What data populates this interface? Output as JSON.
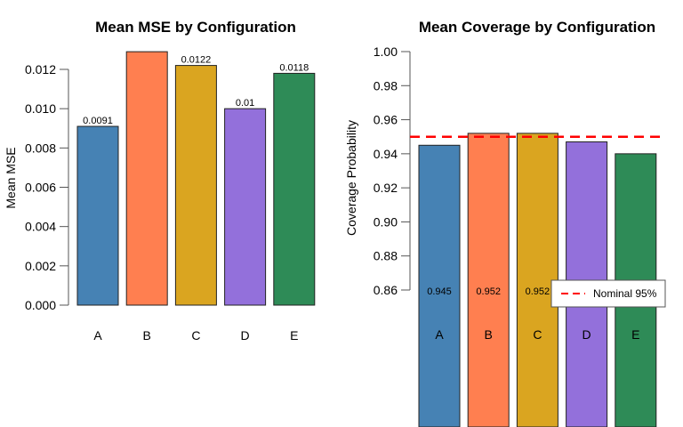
{
  "chart_data": [
    {
      "type": "bar",
      "title": "Mean MSE by Configuration",
      "xlabel": "",
      "ylabel": "Mean MSE",
      "categories": [
        "A",
        "B",
        "C",
        "D",
        "E"
      ],
      "values": [
        0.0091,
        0.0129,
        0.0122,
        0.01,
        0.0118
      ],
      "data_labels": [
        "0.0091",
        "",
        "0.0122",
        "0.01",
        "0.0118"
      ],
      "colors": [
        "#4682B4",
        "#FF7F50",
        "#DAA520",
        "#9370DB",
        "#2E8B57"
      ],
      "ylim": [
        0,
        0.012
      ],
      "yticks": [
        "0.000",
        "0.002",
        "0.004",
        "0.006",
        "0.008",
        "0.010",
        "0.012"
      ],
      "ytick_values": [
        0,
        0.002,
        0.004,
        0.006,
        0.008,
        0.01,
        0.012
      ],
      "grid": false
    },
    {
      "type": "bar",
      "title": "Mean Coverage by Configuration",
      "xlabel": "",
      "ylabel": "Coverage Probability",
      "categories": [
        "A",
        "B",
        "C",
        "D",
        "E"
      ],
      "values": [
        0.945,
        0.952,
        0.952,
        0.947,
        0.94
      ],
      "data_labels": [
        "0.945",
        "0.952",
        "0.952",
        "",
        ""
      ],
      "colors": [
        "#4682B4",
        "#FF7F50",
        "#DAA520",
        "#9370DB",
        "#2E8B57"
      ],
      "ylim": [
        0.86,
        1.0
      ],
      "yticks": [
        "0.86",
        "0.88",
        "0.90",
        "0.92",
        "0.94",
        "0.96",
        "0.98",
        "1.00"
      ],
      "ytick_values": [
        0.86,
        0.88,
        0.9,
        0.92,
        0.94,
        0.96,
        0.98,
        1.0
      ],
      "reference_line": {
        "value": 0.95,
        "color": "#FF0000",
        "style": "dashed",
        "label": "Nominal 95%"
      },
      "legend": {
        "entries": [
          "Nominal 95%"
        ],
        "placement": "right"
      },
      "grid": false
    }
  ]
}
